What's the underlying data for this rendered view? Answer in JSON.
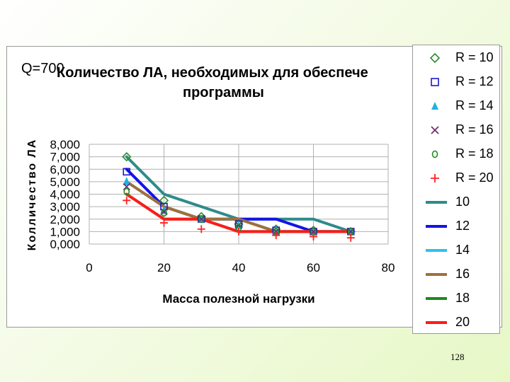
{
  "header": {
    "q_label": "Q=700",
    "title_line1": "Количество ЛА, необходимых для обеспече",
    "title_line2": "программы"
  },
  "page_number": "128",
  "chart_data": {
    "type": "line",
    "title": "Количество ЛА, необходимых для обеспечения программы",
    "xlabel": "Масса полезной нагрузки",
    "ylabel": "Колличество ЛА",
    "xlim": [
      0,
      80
    ],
    "ylim": [
      0,
      8
    ],
    "x_ticks": [
      "0",
      "20",
      "40",
      "60",
      "80"
    ],
    "y_ticks": [
      "0,000",
      "1,000",
      "2,000",
      "3,000",
      "4,000",
      "5,000",
      "6,000",
      "7,000",
      "8,000"
    ],
    "grid": true,
    "legend_position": "right",
    "marker_series": [
      {
        "name": "R =  10",
        "marker": "diamond",
        "color": "#2e8b2e",
        "points": [
          [
            10,
            7
          ],
          [
            20,
            3.5
          ],
          [
            30,
            2.2
          ],
          [
            40,
            1.6
          ],
          [
            50,
            1.2
          ],
          [
            60,
            1.1
          ],
          [
            70,
            1.0
          ]
        ]
      },
      {
        "name": "R =  12",
        "marker": "square",
        "color": "#1a1acc",
        "points": [
          [
            10,
            5.8
          ],
          [
            20,
            3.0
          ],
          [
            30,
            2.0
          ],
          [
            40,
            1.6
          ],
          [
            50,
            1.1
          ],
          [
            60,
            1.0
          ],
          [
            70,
            1.0
          ]
        ]
      },
      {
        "name": "R =  14",
        "marker": "triangle",
        "color": "#20b0e0",
        "points": [
          [
            10,
            5.0
          ],
          [
            20,
            2.7
          ],
          [
            30,
            2.0
          ],
          [
            40,
            1.5
          ],
          [
            50,
            1.1
          ],
          [
            60,
            1.0
          ],
          [
            70,
            1.0
          ]
        ]
      },
      {
        "name": "R =  16",
        "marker": "x",
        "color": "#6a2a6a",
        "points": [
          [
            10,
            4.6
          ],
          [
            20,
            2.6
          ],
          [
            30,
            2.0
          ],
          [
            40,
            1.5
          ],
          [
            50,
            1.0
          ],
          [
            60,
            1.0
          ],
          [
            70,
            1.0
          ]
        ]
      },
      {
        "name": "R =  18",
        "marker": "circle",
        "color": "#228b22",
        "points": [
          [
            10,
            4.2
          ],
          [
            20,
            2.5
          ],
          [
            30,
            2.0
          ],
          [
            40,
            1.3
          ],
          [
            50,
            1.0
          ],
          [
            60,
            1.0
          ],
          [
            70,
            1.0
          ]
        ]
      },
      {
        "name": "R =  20",
        "marker": "plus",
        "color": "#ff2020",
        "points": [
          [
            10,
            3.5
          ],
          [
            20,
            1.7
          ],
          [
            30,
            1.2
          ],
          [
            40,
            1.0
          ],
          [
            50,
            0.7
          ],
          [
            60,
            0.6
          ],
          [
            70,
            0.5
          ]
        ]
      }
    ],
    "line_series": [
      {
        "name": "10",
        "color": "#2e8b8b",
        "points": [
          [
            10,
            7
          ],
          [
            20,
            4
          ],
          [
            30,
            3
          ],
          [
            40,
            2
          ],
          [
            50,
            2
          ],
          [
            60,
            2
          ],
          [
            70,
            1
          ]
        ]
      },
      {
        "name": "12",
        "color": "#1414e6",
        "points": [
          [
            10,
            6
          ],
          [
            20,
            3
          ],
          [
            30,
            2
          ],
          [
            40,
            2
          ],
          [
            50,
            2
          ],
          [
            60,
            1
          ],
          [
            70,
            1
          ]
        ]
      },
      {
        "name": "14",
        "color": "#30c0f0",
        "points": [
          [
            10,
            5
          ],
          [
            20,
            3
          ],
          [
            30,
            2
          ],
          [
            40,
            2
          ],
          [
            50,
            1
          ],
          [
            60,
            1
          ],
          [
            70,
            1
          ]
        ]
      },
      {
        "name": "16",
        "color": "#a0703a",
        "points": [
          [
            10,
            5
          ],
          [
            20,
            3
          ],
          [
            30,
            2
          ],
          [
            40,
            2
          ],
          [
            50,
            1
          ],
          [
            60,
            1
          ],
          [
            70,
            1
          ]
        ]
      },
      {
        "name": "18",
        "color": "#1a8c1a",
        "points": [
          [
            10,
            4
          ],
          [
            20,
            2
          ],
          [
            30,
            2
          ],
          [
            40,
            1
          ],
          [
            50,
            1
          ],
          [
            60,
            1
          ],
          [
            70,
            1
          ]
        ]
      },
      {
        "name": "20",
        "color": "#ff1a1a",
        "points": [
          [
            10,
            4
          ],
          [
            20,
            2
          ],
          [
            30,
            2
          ],
          [
            40,
            1
          ],
          [
            50,
            1
          ],
          [
            60,
            1
          ],
          [
            70,
            1
          ]
        ]
      }
    ]
  }
}
